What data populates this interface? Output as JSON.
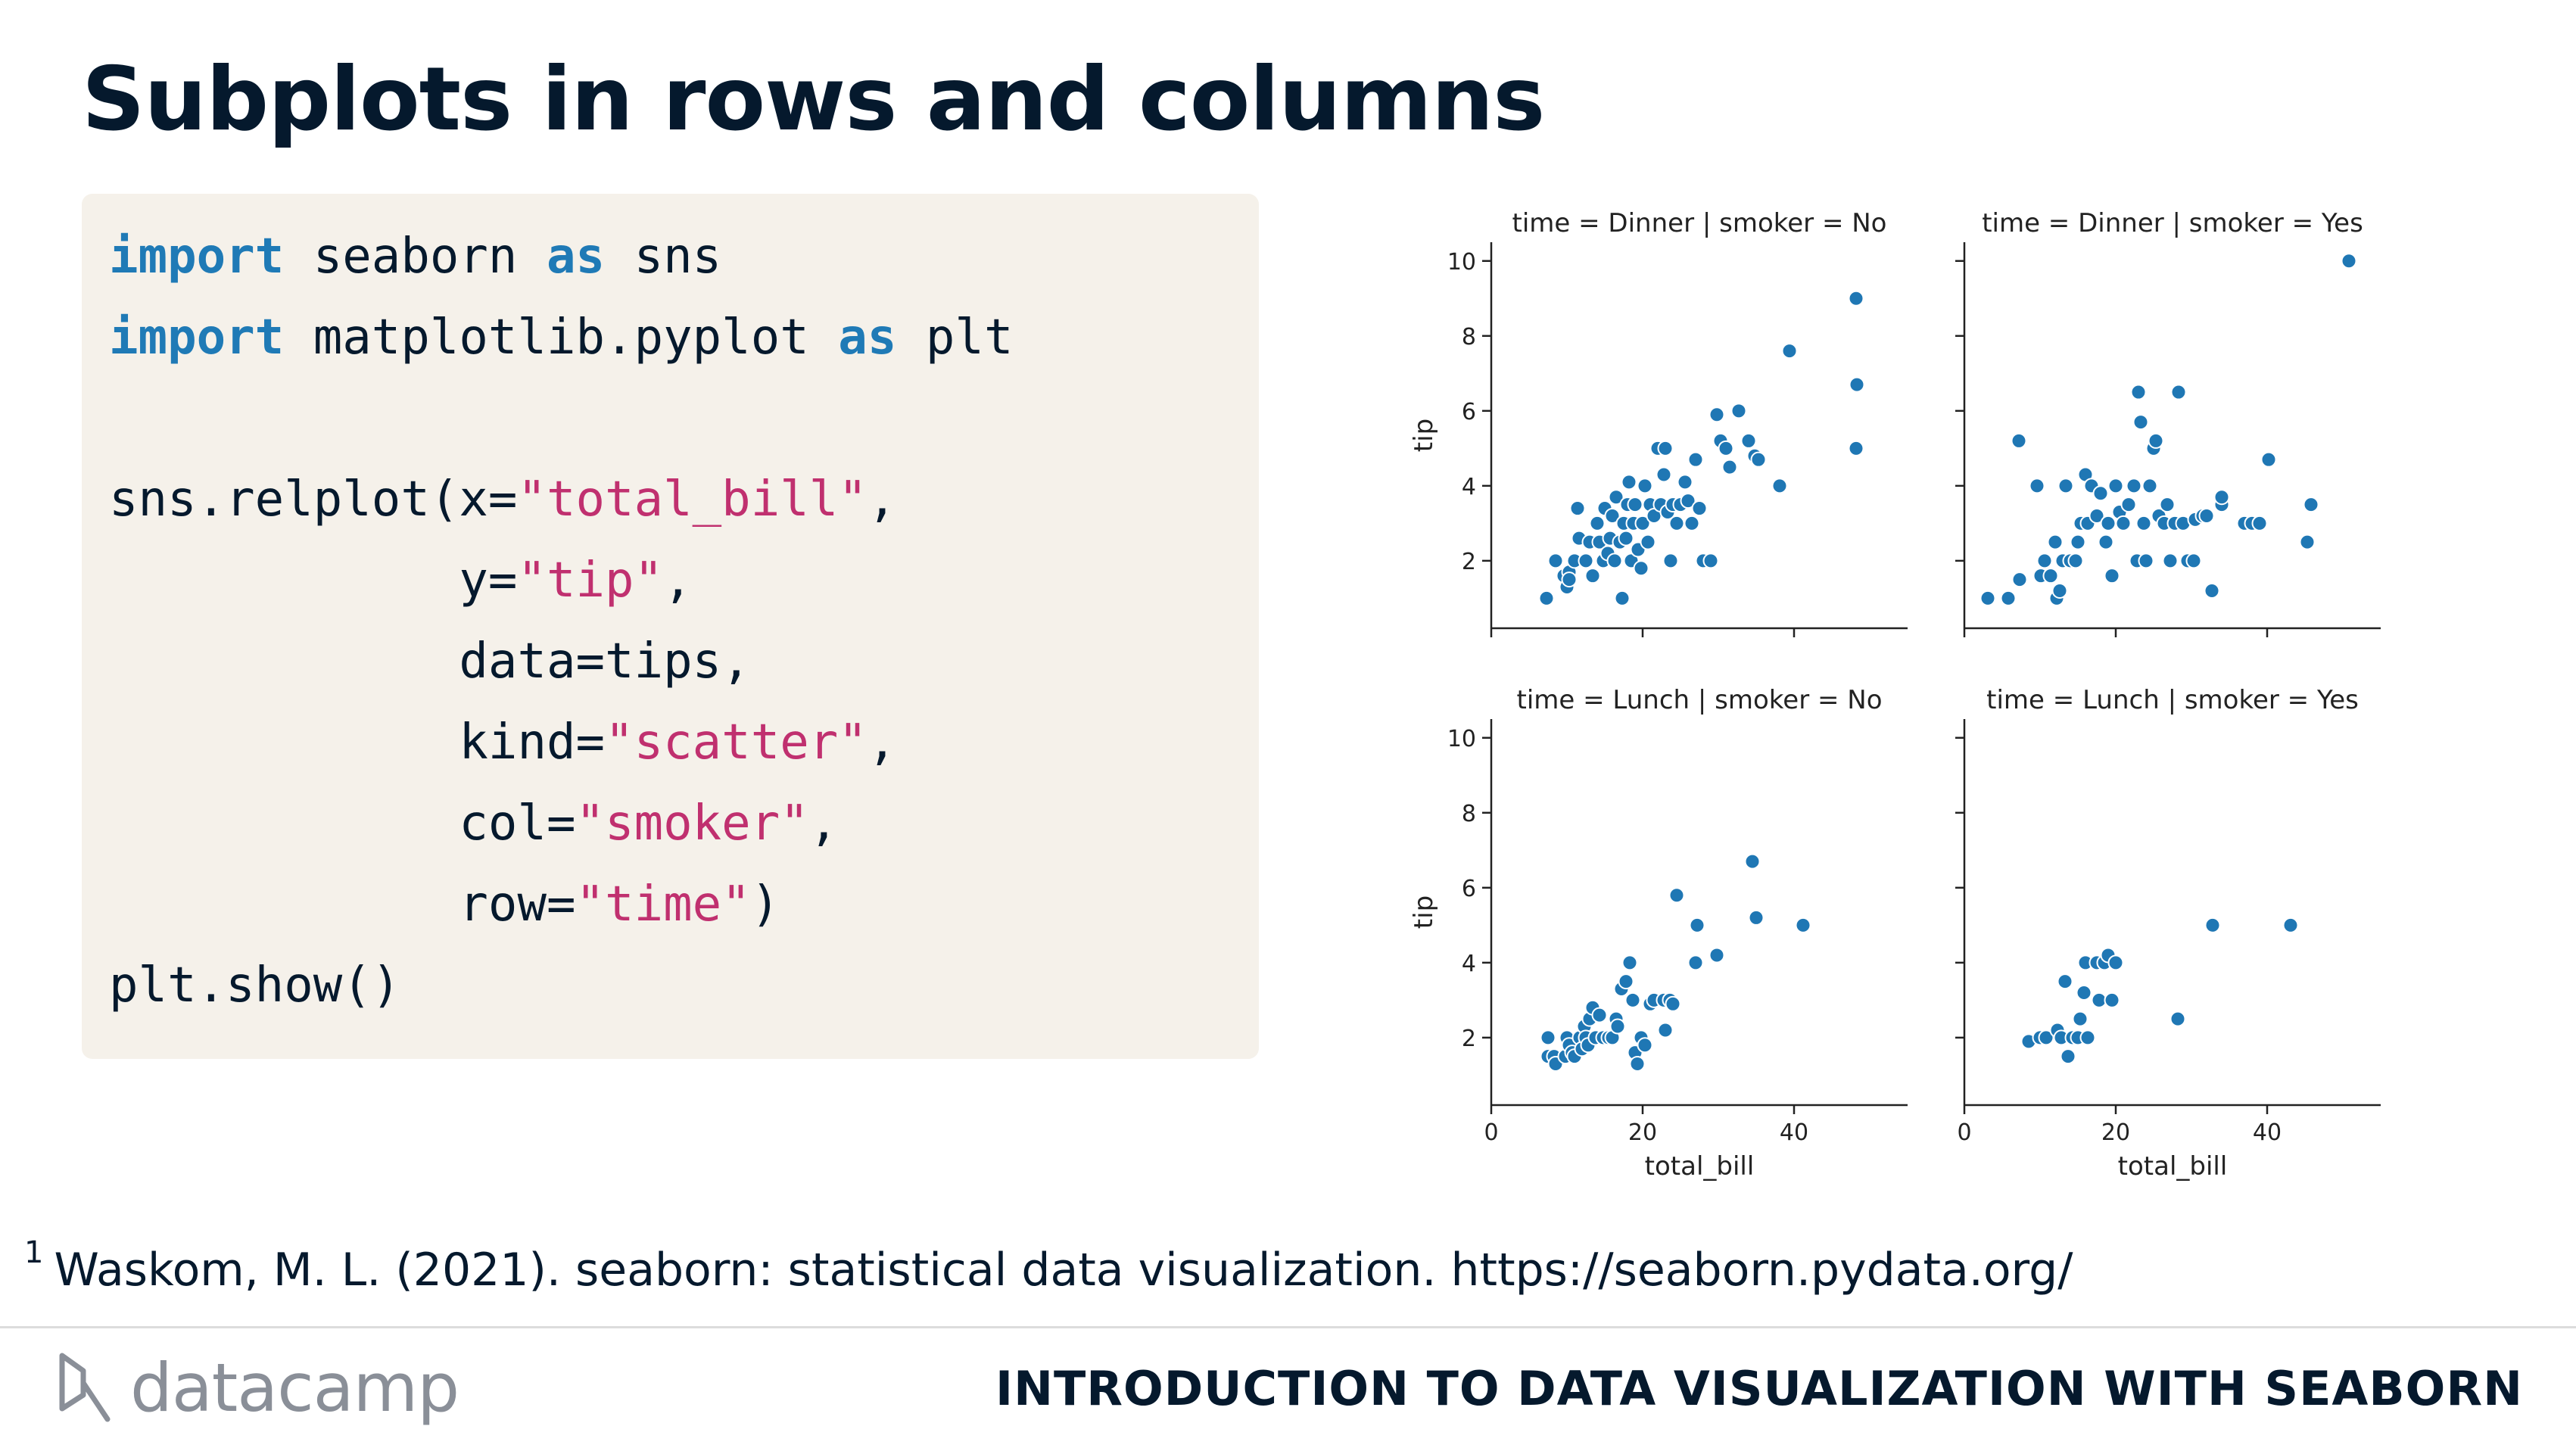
{
  "slide": {
    "title": "Subplots in rows and columns",
    "footnote_marker": "1",
    "footnote": "Waskom, M. L. (2021). seaborn: statistical data visualization. https://seaborn.pydata.org/",
    "logo_text": "datacamp",
    "course_title": "INTRODUCTION TO DATA VISUALIZATION WITH SEABORN"
  },
  "code": {
    "l1": {
      "kw1": "import",
      "t1": " seaborn ",
      "kw2": "as",
      "t2": " sns"
    },
    "l2": {
      "kw1": "import",
      "t1": " matplotlib.pyplot ",
      "kw2": "as",
      "t2": " plt"
    },
    "l3": {
      "a": "sns.relplot(x=",
      "s": "\"total_bill\"",
      "b": ","
    },
    "l4": {
      "a": "            y=",
      "s": "\"tip\"",
      "b": ","
    },
    "l5": {
      "a": "            data=tips,"
    },
    "l6": {
      "a": "            kind=",
      "s": "\"scatter\"",
      "b": ","
    },
    "l7": {
      "a": "            col=",
      "s": "\"smoker\"",
      "b": ","
    },
    "l8": {
      "a": "            row=",
      "s": "\"time\"",
      "b": ")"
    },
    "l9": {
      "a": "plt.show()"
    }
  },
  "chart_data": {
    "type": "scatter",
    "xlabel": "total_bill",
    "ylabel": "tip",
    "xlim": [
      0,
      55
    ],
    "ylim": [
      0.2,
      10.5
    ],
    "xticks": [
      0,
      20,
      40
    ],
    "yticks": [
      2,
      4,
      6,
      8,
      10
    ],
    "color": "#1f77b4",
    "panels": [
      {
        "title": "time = Dinner | smoker = No",
        "points": [
          [
            7.3,
            1.0
          ],
          [
            8.5,
            2.0
          ],
          [
            9.6,
            1.6
          ],
          [
            10.0,
            1.3
          ],
          [
            10.3,
            1.7
          ],
          [
            10.3,
            1.5
          ],
          [
            11.0,
            2.0
          ],
          [
            11.4,
            3.4
          ],
          [
            11.6,
            2.6
          ],
          [
            12.5,
            2.0
          ],
          [
            13.0,
            2.5
          ],
          [
            13.4,
            1.6
          ],
          [
            14.0,
            3.0
          ],
          [
            14.3,
            2.5
          ],
          [
            14.8,
            2.0
          ],
          [
            15.0,
            3.4
          ],
          [
            15.4,
            2.2
          ],
          [
            15.7,
            2.6
          ],
          [
            16.0,
            3.2
          ],
          [
            16.3,
            2.0
          ],
          [
            16.5,
            3.7
          ],
          [
            17.0,
            2.5
          ],
          [
            17.3,
            1.0
          ],
          [
            17.5,
            3.0
          ],
          [
            17.8,
            2.6
          ],
          [
            18.0,
            3.5
          ],
          [
            18.2,
            4.1
          ],
          [
            18.5,
            2.0
          ],
          [
            18.8,
            3.0
          ],
          [
            19.0,
            3.5
          ],
          [
            19.4,
            2.3
          ],
          [
            19.8,
            1.8
          ],
          [
            20.0,
            3.0
          ],
          [
            20.3,
            4.0
          ],
          [
            20.7,
            2.5
          ],
          [
            21.0,
            3.5
          ],
          [
            21.5,
            3.2
          ],
          [
            22.0,
            5.0
          ],
          [
            22.4,
            3.5
          ],
          [
            22.8,
            4.3
          ],
          [
            23.0,
            5.0
          ],
          [
            23.3,
            3.3
          ],
          [
            23.7,
            2.0
          ],
          [
            24.0,
            3.5
          ],
          [
            24.5,
            3.0
          ],
          [
            25.0,
            3.5
          ],
          [
            25.6,
            4.1
          ],
          [
            26.0,
            3.6
          ],
          [
            26.5,
            3.0
          ],
          [
            27.0,
            4.7
          ],
          [
            27.5,
            3.4
          ],
          [
            28.0,
            2.0
          ],
          [
            29.0,
            2.0
          ],
          [
            29.8,
            5.9
          ],
          [
            30.3,
            5.2
          ],
          [
            31.0,
            5.0
          ],
          [
            31.5,
            4.5
          ],
          [
            32.7,
            6.0
          ],
          [
            34.0,
            5.2
          ],
          [
            34.8,
            4.8
          ],
          [
            35.3,
            4.7
          ],
          [
            38.1,
            4.0
          ],
          [
            39.4,
            7.6
          ],
          [
            48.2,
            9.0
          ],
          [
            48.3,
            6.7
          ],
          [
            48.2,
            5.0
          ]
        ]
      },
      {
        "title": "time = Dinner | smoker = Yes",
        "points": [
          [
            3.1,
            1.0
          ],
          [
            5.8,
            1.0
          ],
          [
            7.2,
            5.2
          ],
          [
            7.3,
            1.5
          ],
          [
            9.6,
            4.0
          ],
          [
            10.1,
            1.6
          ],
          [
            10.6,
            2.0
          ],
          [
            11.4,
            1.6
          ],
          [
            12.0,
            2.5
          ],
          [
            12.2,
            1.0
          ],
          [
            12.6,
            1.2
          ],
          [
            13.0,
            2.0
          ],
          [
            13.4,
            4.0
          ],
          [
            14.0,
            2.0
          ],
          [
            14.7,
            2.0
          ],
          [
            15.0,
            2.5
          ],
          [
            15.4,
            3.0
          ],
          [
            16.0,
            4.3
          ],
          [
            16.3,
            3.0
          ],
          [
            16.8,
            4.0
          ],
          [
            17.5,
            3.2
          ],
          [
            18.0,
            3.8
          ],
          [
            18.7,
            2.5
          ],
          [
            19.0,
            3.0
          ],
          [
            19.5,
            1.6
          ],
          [
            20.0,
            4.0
          ],
          [
            20.5,
            3.3
          ],
          [
            21.0,
            3.0
          ],
          [
            21.7,
            3.5
          ],
          [
            22.4,
            4.0
          ],
          [
            22.8,
            2.0
          ],
          [
            23.0,
            6.5
          ],
          [
            23.3,
            5.7
          ],
          [
            23.7,
            3.0
          ],
          [
            24.0,
            2.0
          ],
          [
            24.5,
            4.0
          ],
          [
            25.0,
            5.0
          ],
          [
            25.3,
            5.2
          ],
          [
            25.7,
            3.2
          ],
          [
            26.4,
            3.0
          ],
          [
            26.8,
            3.5
          ],
          [
            27.2,
            2.0
          ],
          [
            27.8,
            3.0
          ],
          [
            28.3,
            6.5
          ],
          [
            28.9,
            3.0
          ],
          [
            29.5,
            2.0
          ],
          [
            30.3,
            2.0
          ],
          [
            30.5,
            3.1
          ],
          [
            31.5,
            3.2
          ],
          [
            32.7,
            1.2
          ],
          [
            32.0,
            3.2
          ],
          [
            34.0,
            3.5
          ],
          [
            34.0,
            3.7
          ],
          [
            37.0,
            3.0
          ],
          [
            38.0,
            3.0
          ],
          [
            39.0,
            3.0
          ],
          [
            40.2,
            4.7
          ],
          [
            45.3,
            2.5
          ],
          [
            45.8,
            3.5
          ],
          [
            50.8,
            10.0
          ]
        ]
      },
      {
        "title": "time = Lunch | smoker = No",
        "points": [
          [
            7.5,
            2.0
          ],
          [
            7.5,
            1.5
          ],
          [
            8.3,
            1.5
          ],
          [
            8.5,
            1.3
          ],
          [
            9.8,
            1.5
          ],
          [
            10.0,
            2.0
          ],
          [
            10.3,
            1.8
          ],
          [
            10.7,
            1.6
          ],
          [
            11.0,
            1.5
          ],
          [
            11.7,
            2.0
          ],
          [
            12.0,
            1.7
          ],
          [
            12.3,
            2.3
          ],
          [
            12.5,
            2.0
          ],
          [
            12.8,
            1.8
          ],
          [
            13.0,
            2.5
          ],
          [
            13.4,
            2.8
          ],
          [
            13.8,
            2.0
          ],
          [
            14.3,
            2.6
          ],
          [
            14.8,
            2.0
          ],
          [
            15.5,
            2.0
          ],
          [
            16.0,
            2.0
          ],
          [
            16.5,
            2.5
          ],
          [
            16.7,
            2.3
          ],
          [
            17.2,
            3.3
          ],
          [
            17.8,
            3.5
          ],
          [
            18.3,
            4.0
          ],
          [
            18.7,
            3.0
          ],
          [
            19.0,
            1.6
          ],
          [
            19.3,
            1.3
          ],
          [
            19.8,
            2.0
          ],
          [
            20.3,
            1.8
          ],
          [
            21.0,
            2.9
          ],
          [
            21.5,
            3.0
          ],
          [
            22.8,
            3.0
          ],
          [
            23.0,
            2.2
          ],
          [
            23.6,
            3.0
          ],
          [
            24.0,
            2.9
          ],
          [
            24.5,
            5.8
          ],
          [
            27.0,
            4.0
          ],
          [
            27.2,
            5.0
          ],
          [
            29.8,
            4.2
          ],
          [
            34.5,
            6.7
          ],
          [
            35.0,
            5.2
          ],
          [
            41.2,
            5.0
          ]
        ]
      },
      {
        "title": "time = Lunch | smoker = Yes",
        "points": [
          [
            8.5,
            1.9
          ],
          [
            10.0,
            2.0
          ],
          [
            10.8,
            2.0
          ],
          [
            12.3,
            2.2
          ],
          [
            12.8,
            2.0
          ],
          [
            13.3,
            3.5
          ],
          [
            13.7,
            1.5
          ],
          [
            14.3,
            2.0
          ],
          [
            15.0,
            2.0
          ],
          [
            15.3,
            2.5
          ],
          [
            15.8,
            3.2
          ],
          [
            16.0,
            4.0
          ],
          [
            16.3,
            2.0
          ],
          [
            17.5,
            4.0
          ],
          [
            17.8,
            3.0
          ],
          [
            18.5,
            4.0
          ],
          [
            19.0,
            4.2
          ],
          [
            19.5,
            3.0
          ],
          [
            20.0,
            4.0
          ],
          [
            28.2,
            2.5
          ],
          [
            32.8,
            5.0
          ],
          [
            43.1,
            5.0
          ]
        ]
      }
    ]
  }
}
